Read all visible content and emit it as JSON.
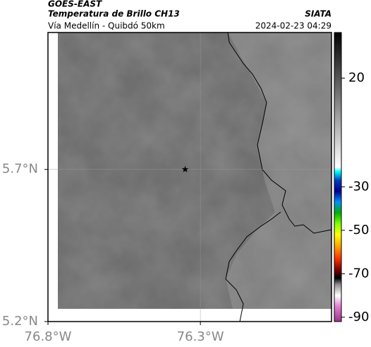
{
  "chart_data": {
    "type": "map",
    "title": "GOES-EAST",
    "subtitle": "Temperatura de Brillo CH13",
    "location": "Vía Medellín - Quibdó 50km",
    "source": "SIATA",
    "timestamp": "2024-02-23 04:29",
    "xlim": [
      -76.8,
      -75.87
    ],
    "ylim": [
      5.2,
      6.15
    ],
    "xticks": [
      {
        "value": -76.8,
        "label": "76.8°W"
      },
      {
        "value": -76.3,
        "label": "76.3°W"
      }
    ],
    "yticks": [
      {
        "value": 5.2,
        "label": "5.2°N"
      },
      {
        "value": 5.7,
        "label": "5.7°N"
      }
    ],
    "grid": true,
    "markers": [
      {
        "x": -76.35,
        "y": 5.7
      }
    ],
    "clim": [
      -92,
      41
    ],
    "cticks": [
      20,
      -30,
      -50,
      -70,
      -90
    ],
    "colorbar_stops": [
      {
        "value": -92,
        "color": "#a03090"
      },
      {
        "value": -85,
        "color": "#e080d0"
      },
      {
        "value": -80,
        "color": "#ffffff"
      },
      {
        "value": -75,
        "color": "#909090"
      },
      {
        "value": -72,
        "color": "#000000"
      },
      {
        "value": -68,
        "color": "#800000"
      },
      {
        "value": -63,
        "color": "#ff3000"
      },
      {
        "value": -58,
        "color": "#ff9900"
      },
      {
        "value": -52,
        "color": "#ffff00"
      },
      {
        "value": -47,
        "color": "#80ff00"
      },
      {
        "value": -42,
        "color": "#00b000"
      },
      {
        "value": -37,
        "color": "#0090ff"
      },
      {
        "value": -32,
        "color": "#000090"
      },
      {
        "value": -27,
        "color": "#0040c0"
      },
      {
        "value": -23,
        "color": "#00ffff"
      },
      {
        "value": -21,
        "color": "#ffffff"
      },
      {
        "value": 41,
        "color": "#000000"
      }
    ]
  }
}
